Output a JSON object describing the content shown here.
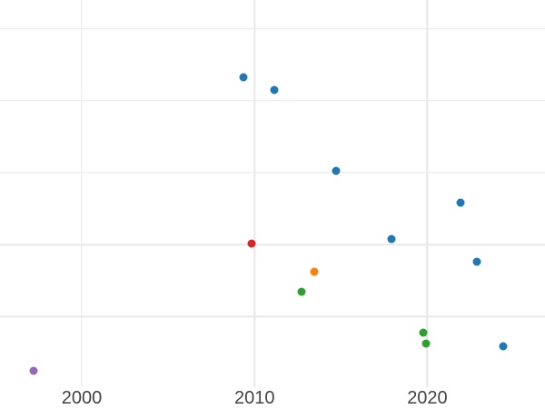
{
  "figure": {
    "background_color": "#ffffff",
    "gridline_color": "#e8e8e8",
    "tick_label_color": "#434343"
  },
  "chart_data": {
    "type": "scatter",
    "title": "",
    "xlabel": "",
    "ylabel": "",
    "grid": true,
    "legend": "none",
    "x_axis": {
      "tick_labels": [
        "2000",
        "2010",
        "2020"
      ],
      "tick_values": [
        2000,
        2010,
        2020
      ],
      "range": [
        1995.27,
        2026.81
      ],
      "labels_visible": true
    },
    "y_axis": {
      "tick_labels": [],
      "gridline_values": [
        1,
        2,
        3,
        4,
        5
      ],
      "range": [
        0,
        5.4
      ],
      "labels_visible": false
    },
    "series": [
      {
        "name": "blue",
        "color": "#1f77b4",
        "points": [
          {
            "x": 2009.35,
            "y": 4.33
          },
          {
            "x": 2011.13,
            "y": 4.15
          },
          {
            "x": 2014.72,
            "y": 3.03
          },
          {
            "x": 2017.92,
            "y": 2.08
          },
          {
            "x": 2021.92,
            "y": 2.58
          },
          {
            "x": 2022.87,
            "y": 1.76
          },
          {
            "x": 2024.39,
            "y": 0.58
          }
        ]
      },
      {
        "name": "orange",
        "color": "#ff7f0e",
        "points": [
          {
            "x": 2013.44,
            "y": 1.62
          }
        ]
      },
      {
        "name": "green",
        "color": "#2ca02c",
        "points": [
          {
            "x": 2012.74,
            "y": 1.35
          },
          {
            "x": 2019.76,
            "y": 0.78
          },
          {
            "x": 2019.93,
            "y": 0.63
          }
        ]
      },
      {
        "name": "red",
        "color": "#d62728",
        "points": [
          {
            "x": 2009.81,
            "y": 2.02
          }
        ]
      },
      {
        "name": "purple",
        "color": "#9467bd",
        "points": [
          {
            "x": 1997.21,
            "y": 0.24
          }
        ]
      }
    ]
  }
}
